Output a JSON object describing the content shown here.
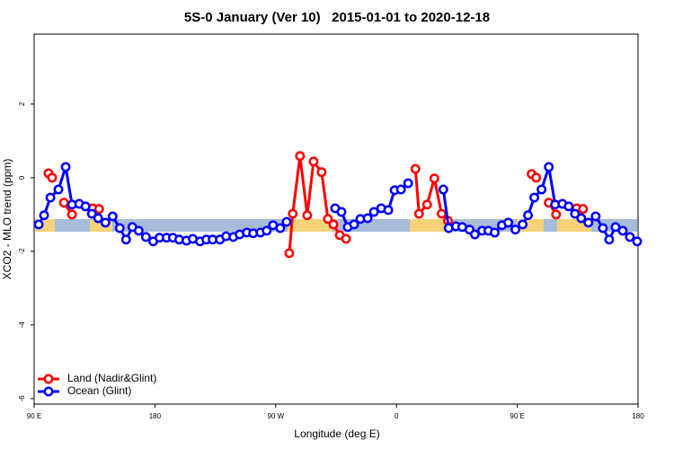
{
  "chart_data": {
    "type": "line",
    "title": "5S-0 January (Ver 10)   2015-01-01 to 2020-12-18",
    "x_label": "Longitude (deg E)",
    "y_label": "XCO2 - MLO trend (ppm)",
    "xlim": [
      90,
      540
    ],
    "xticks": [
      {
        "value": 90,
        "label": "90 E"
      },
      {
        "value": 180,
        "label": "180"
      },
      {
        "value": 270,
        "label": "90 W"
      },
      {
        "value": 360,
        "label": "0"
      },
      {
        "value": 450,
        "label": "90 E"
      },
      {
        "value": 540,
        "label": "180"
      }
    ],
    "ylim": [
      -6.15,
      3.9
    ],
    "yticks": [
      2,
      0,
      -2,
      -4,
      -6
    ],
    "legend": "bottom-left",
    "series": [
      {
        "name": "Land (Nadir&Glint)",
        "color": "#ff0000",
        "x": [
          100.7,
          103.4,
          null,
          112.2,
          118.2,
          null,
          133.7,
          138.4,
          null,
          280.1,
          282.7,
          288.1,
          293.5,
          298.2,
          304.2,
          308.9,
          313.0,
          317.7,
          322.4,
          null,
          374.1,
          376.8,
          382.8,
          388.2,
          393.6,
          398.3,
          null,
          460.7,
          464.1,
          null,
          473.5,
          478.9,
          null,
          494.3,
          499.0
        ],
        "values": [
          0.12,
          0.0,
          null,
          -0.68,
          -1.0,
          null,
          -0.83,
          -0.85,
          null,
          -2.05,
          -0.98,
          0.59,
          -1.02,
          0.44,
          0.15,
          -1.12,
          -1.27,
          -1.56,
          -1.66,
          null,
          0.24,
          -0.98,
          -0.73,
          -0.02,
          -0.98,
          -1.17,
          null,
          0.1,
          0.0,
          null,
          -0.68,
          -1.0,
          null,
          -0.83,
          -0.85
        ]
      },
      {
        "name": "Ocean (Glint)",
        "color": "#0000ff",
        "x": [
          93.4,
          97.4,
          102.1,
          108.1,
          113.5,
          118.2,
          123.6,
          128.3,
          133.0,
          137.7,
          143.1,
          148.5,
          153.8,
          158.5,
          163.2,
          167.9,
          173.3,
          178.7,
          183.4,
          188.7,
          193.4,
          198.1,
          203.5,
          208.2,
          213.6,
          218.3,
          223.0,
          228.4,
          233.0,
          238.4,
          243.1,
          248.5,
          253.2,
          258.6,
          263.3,
          268.0,
          273.4,
          278.1,
          null,
          314.3,
          319.0,
          323.7,
          328.4,
          333.1,
          338.5,
          343.2,
          348.6,
          353.9,
          358.6,
          363.3,
          368.7,
          null,
          394.9,
          398.9,
          404.3,
          409.0,
          414.4,
          418.4,
          423.8,
          428.5,
          433.2,
          438.6,
          443.3,
          448.6,
          454.0,
          458.0,
          462.7,
          468.1,
          473.5,
          478.2,
          483.6,
          488.3,
          493.0,
          497.7,
          503.0,
          508.4,
          513.8,
          518.5,
          523.2,
          528.6,
          533.9,
          539.3
        ],
        "values": [
          -1.27,
          -1.02,
          -0.54,
          -0.32,
          0.29,
          -0.73,
          -0.71,
          -0.78,
          -0.98,
          -1.1,
          -1.22,
          -1.05,
          -1.37,
          -1.68,
          -1.34,
          -1.44,
          -1.61,
          -1.73,
          -1.63,
          -1.63,
          -1.63,
          -1.68,
          -1.71,
          -1.66,
          -1.73,
          -1.68,
          -1.68,
          -1.68,
          -1.59,
          -1.61,
          -1.54,
          -1.49,
          -1.51,
          -1.49,
          -1.44,
          -1.29,
          -1.37,
          -1.2,
          null,
          -0.83,
          -0.93,
          -1.34,
          -1.27,
          -1.12,
          -1.1,
          -0.93,
          -0.83,
          -0.88,
          -0.34,
          -0.32,
          -0.15,
          null,
          -0.32,
          -1.37,
          -1.32,
          -1.34,
          -1.41,
          -1.54,
          -1.44,
          -1.44,
          -1.49,
          -1.29,
          -1.22,
          -1.41,
          -1.27,
          -1.02,
          -0.54,
          -0.32,
          0.29,
          -0.73,
          -0.71,
          -0.78,
          -0.98,
          -1.1,
          -1.22,
          -1.05,
          -1.37,
          -1.68,
          -1.34,
          -1.44,
          -1.61,
          -1.73
        ]
      }
    ]
  }
}
